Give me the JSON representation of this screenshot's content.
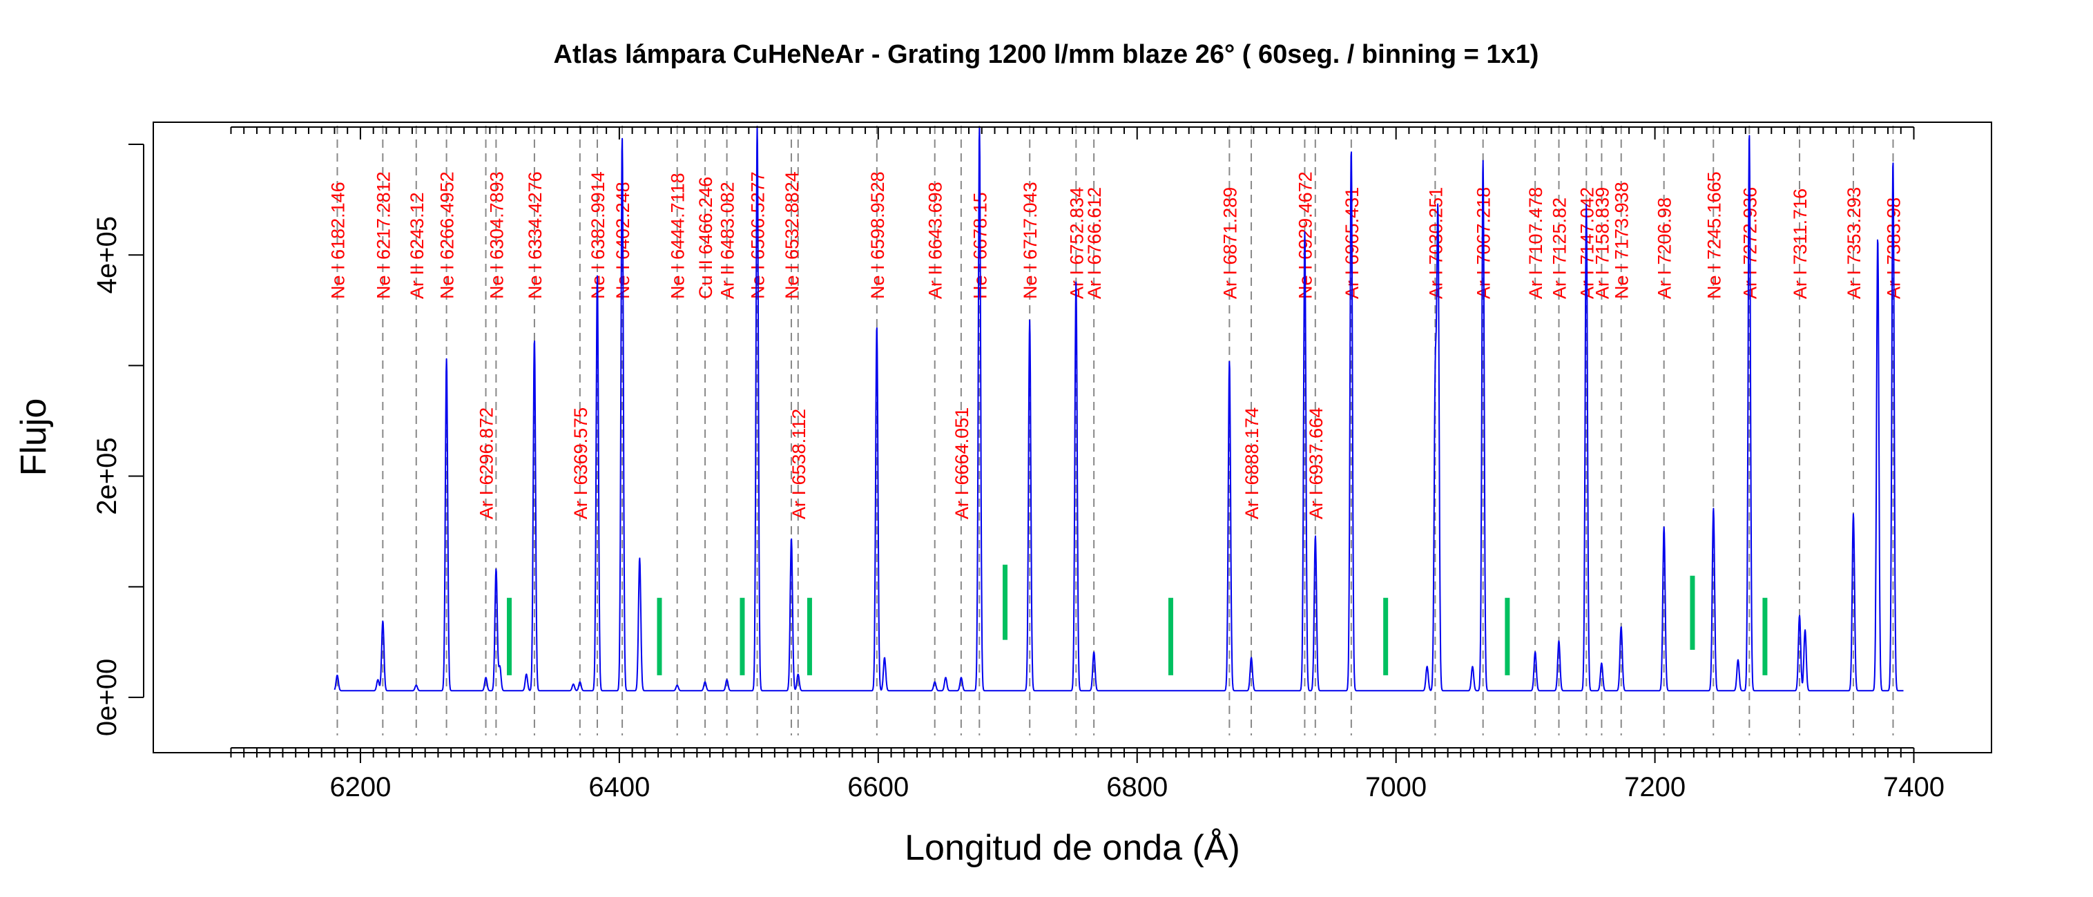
{
  "chart_data": {
    "type": "line",
    "title": "Atlas lámpara CuHeNeAr - Grating 1200 l/mm blaze 26° ( 60seg. / binning = 1x1)",
    "xlabel": "Longitud de onda (Å)",
    "ylabel": "Flujo",
    "xlim": [
      6040,
      7460
    ],
    "ylim": [
      -50000,
      520000
    ],
    "xticks": [
      {
        "value": 6200,
        "label": "6200"
      },
      {
        "value": 6400,
        "label": "6400"
      },
      {
        "value": 6600,
        "label": "6600"
      },
      {
        "value": 6800,
        "label": "6800"
      },
      {
        "value": 7000,
        "label": "7000"
      },
      {
        "value": 7200,
        "label": "7200"
      },
      {
        "value": 7400,
        "label": "7400"
      }
    ],
    "yticks": [
      {
        "value": 0,
        "label": "0e+00"
      },
      {
        "value": 200000,
        "label": "2e+05"
      },
      {
        "value": 400000,
        "label": "4e+05"
      }
    ],
    "minor_tick_range": [
      6100,
      7400
    ],
    "minor_tick_step": 10,
    "series_color": "#0000ee",
    "marker_color": "#00c060",
    "label_color": "#ff0000",
    "grid": false,
    "spectrum_range": [
      6180,
      7392
    ],
    "continuum": 6000,
    "spectrum_peaks": [
      [
        6182.1,
        14000
      ],
      [
        6213.5,
        10000
      ],
      [
        6217.3,
        63000
      ],
      [
        6243.1,
        5000
      ],
      [
        6266.5,
        300000
      ],
      [
        6296.9,
        12000
      ],
      [
        6304.8,
        110000
      ],
      [
        6307.7,
        22000
      ],
      [
        6328.2,
        15000
      ],
      [
        6334.4,
        318000
      ],
      [
        6364.5,
        6000
      ],
      [
        6369.6,
        8000
      ],
      [
        6383.0,
        375000
      ],
      [
        6402.2,
        500000
      ],
      [
        6415.7,
        120000
      ],
      [
        6444.7,
        5000
      ],
      [
        6466.2,
        8000
      ],
      [
        6483.1,
        10000
      ],
      [
        6506.5,
        510000
      ],
      [
        6532.9,
        138000
      ],
      [
        6538.1,
        15000
      ],
      [
        6598.9,
        330000
      ],
      [
        6604.9,
        30000
      ],
      [
        6643.7,
        8000
      ],
      [
        6652.1,
        12000
      ],
      [
        6664.1,
        12000
      ],
      [
        6678.2,
        510000
      ],
      [
        6717.0,
        335000
      ],
      [
        6752.8,
        370000
      ],
      [
        6766.6,
        35000
      ],
      [
        6871.3,
        298000
      ],
      [
        6888.2,
        30000
      ],
      [
        6929.5,
        415000
      ],
      [
        6937.7,
        140000
      ],
      [
        6965.4,
        490000
      ],
      [
        7024.0,
        22000
      ],
      [
        7030.3,
        270000
      ],
      [
        7032.4,
        420000
      ],
      [
        7059.1,
        22000
      ],
      [
        7067.2,
        480000
      ],
      [
        7107.5,
        35000
      ],
      [
        7125.8,
        45000
      ],
      [
        7147.0,
        440000
      ],
      [
        7158.8,
        25000
      ],
      [
        7173.9,
        58000
      ],
      [
        7207.0,
        148000
      ],
      [
        7245.2,
        165000
      ],
      [
        7264.2,
        28000
      ],
      [
        7272.9,
        505000
      ],
      [
        7311.7,
        68000
      ],
      [
        7316.0,
        55000
      ],
      [
        7353.3,
        160000
      ],
      [
        7372.1,
        410000
      ],
      [
        7383.9,
        480000
      ]
    ],
    "line_ids": [
      {
        "wl": 6182.146,
        "text": "Ne I   6182.146",
        "row": "top"
      },
      {
        "wl": 6217.2812,
        "text": "Ne I   6217.2812",
        "row": "top"
      },
      {
        "wl": 6243.12,
        "text": "Ar II   6243.12",
        "row": "top"
      },
      {
        "wl": 6266.4952,
        "text": "Ne I   6266.4952",
        "row": "top"
      },
      {
        "wl": 6296.872,
        "text": "Ar I   6296.872",
        "row": "low"
      },
      {
        "wl": 6304.7893,
        "text": "Ne I   6304.7893",
        "row": "top"
      },
      {
        "wl": 6334.4276,
        "text": "Ne I   6334.4276",
        "row": "top"
      },
      {
        "wl": 6369.575,
        "text": "Ar I   6369.575",
        "row": "low"
      },
      {
        "wl": 6382.9914,
        "text": "Ne I   6382.9914",
        "row": "top"
      },
      {
        "wl": 6402.248,
        "text": "Ne I   6402.248",
        "row": "top"
      },
      {
        "wl": 6444.7118,
        "text": "Ne I   6444.7118",
        "row": "top"
      },
      {
        "wl": 6466.246,
        "text": "Cu II   6466.246",
        "row": "top"
      },
      {
        "wl": 6483.082,
        "text": "Ar II   6483.082",
        "row": "top"
      },
      {
        "wl": 6506.5277,
        "text": "Ne I   6506.5277",
        "row": "top"
      },
      {
        "wl": 6532.8824,
        "text": "Ne I   6532.8824",
        "row": "top"
      },
      {
        "wl": 6538.112,
        "text": "Ar I   6538.112",
        "row": "low"
      },
      {
        "wl": 6598.9528,
        "text": "Ne I   6598.9528",
        "row": "top"
      },
      {
        "wl": 6643.698,
        "text": "Ar II   6643.698",
        "row": "top"
      },
      {
        "wl": 6664.051,
        "text": "Ar I   6664.051",
        "row": "low"
      },
      {
        "wl": 6678.15,
        "text": "He I   6678.15",
        "row": "top"
      },
      {
        "wl": 6717.043,
        "text": "Ne I   6717.043",
        "row": "top"
      },
      {
        "wl": 6752.834,
        "text": "Ar I   6752.834",
        "row": "top"
      },
      {
        "wl": 6766.612,
        "text": "Ar I   6766.612",
        "row": "top"
      },
      {
        "wl": 6871.289,
        "text": "Ar I   6871.289",
        "row": "top"
      },
      {
        "wl": 6888.174,
        "text": "Ar I   6888.174",
        "row": "low"
      },
      {
        "wl": 6929.4672,
        "text": "Ne I   6929.4672",
        "row": "top"
      },
      {
        "wl": 6937.664,
        "text": "Ar I   6937.664",
        "row": "low"
      },
      {
        "wl": 6965.431,
        "text": "Ar I   6965.431",
        "row": "top"
      },
      {
        "wl": 7030.251,
        "text": "Ar I   7030.251",
        "row": "top"
      },
      {
        "wl": 7067.218,
        "text": "Ar I   7067.218",
        "row": "top"
      },
      {
        "wl": 7107.478,
        "text": "Ar I   7107.478",
        "row": "top"
      },
      {
        "wl": 7125.82,
        "text": "Ar I   7125.82",
        "row": "top"
      },
      {
        "wl": 7147.042,
        "text": "Ar I   7147.042",
        "row": "top"
      },
      {
        "wl": 7158.839,
        "text": "Ar I   7158.839",
        "row": "top"
      },
      {
        "wl": 7173.938,
        "text": "Ne I   7173.938",
        "row": "top"
      },
      {
        "wl": 7206.98,
        "text": "Ar I   7206.98",
        "row": "top"
      },
      {
        "wl": 7245.1665,
        "text": "Ne I   7245.1665",
        "row": "top"
      },
      {
        "wl": 7272.936,
        "text": "Ar I   7272.936",
        "row": "top"
      },
      {
        "wl": 7311.716,
        "text": "Ar I   7311.716",
        "row": "top"
      },
      {
        "wl": 7353.293,
        "text": "Ar I   7353.293",
        "row": "top"
      },
      {
        "wl": 7383.98,
        "text": "Ar I   7383.98",
        "row": "top"
      }
    ],
    "green_markers": [
      {
        "x": 6315,
        "y1": 20000,
        "y2": 90000
      },
      {
        "x": 6431,
        "y1": 20000,
        "y2": 90000
      },
      {
        "x": 6495,
        "y1": 20000,
        "y2": 90000
      },
      {
        "x": 6547,
        "y1": 20000,
        "y2": 90000
      },
      {
        "x": 6698,
        "y1": 52000,
        "y2": 120000
      },
      {
        "x": 6826,
        "y1": 20000,
        "y2": 90000
      },
      {
        "x": 6992,
        "y1": 20000,
        "y2": 90000
      },
      {
        "x": 7086,
        "y1": 20000,
        "y2": 90000
      },
      {
        "x": 7229,
        "y1": 43000,
        "y2": 110000
      },
      {
        "x": 7285,
        "y1": 20000,
        "y2": 90000
      }
    ]
  }
}
